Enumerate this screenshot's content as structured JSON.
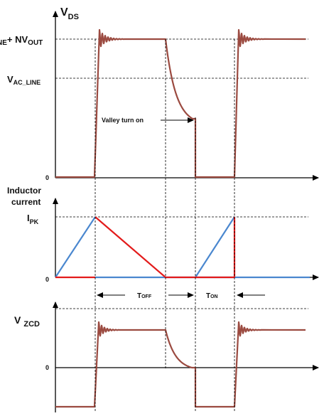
{
  "panel_vds": {
    "axis_title_main": "V",
    "axis_title_sub": "DS",
    "level_high_prefix": "NE",
    "level_high_plus": "+ NV",
    "level_high_sub": "OUT",
    "level_line_main": "V",
    "level_line_sub": "AC_LINE",
    "zero_label": "0",
    "annotation": "Valley turn on"
  },
  "panel_current": {
    "axis_title_line1": "Inductor",
    "axis_title_line2": "current",
    "peak_main": "I",
    "peak_sub": "PK",
    "zero_label": "0",
    "toff_main": "T",
    "toff_sub": "OFF",
    "ton_main": "T",
    "ton_sub": "ON"
  },
  "panel_zcd": {
    "axis_title_main": "V",
    "axis_title_sub": "ZCD",
    "zero_label": "0"
  },
  "colors": {
    "vds_trace": "#9B4A40",
    "zcd_trace": "#9B4A40",
    "current_rising": "#4A87CF",
    "current_falling": "#E31B1B",
    "axes": "#000000"
  }
}
